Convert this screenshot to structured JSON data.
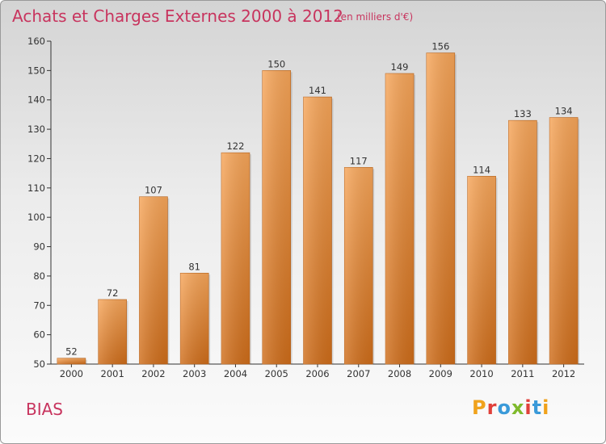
{
  "header": {
    "title": "Achats et Charges Externes 2000 à 2012",
    "unit": "(en milliers d'€)"
  },
  "footer": {
    "commune": "BIAS",
    "logo_text": "Proxiti",
    "logo_colors": [
      "#f0a21c",
      "#e0403a",
      "#3a9ad9",
      "#7fba2c",
      "#e0403a",
      "#3a9ad9",
      "#f0a21c"
    ]
  },
  "colors": {
    "title": "#c8345e",
    "bar_light": "#f7a65a",
    "bar_dark": "#cf6d1a",
    "axis": "#333333"
  },
  "chart_data": {
    "type": "bar",
    "title": "Achats et Charges Externes 2000 à 2012",
    "subtitle": "(en milliers d'€)",
    "categories": [
      "2000",
      "2001",
      "2002",
      "2003",
      "2004",
      "2005",
      "2006",
      "2007",
      "2008",
      "2009",
      "2010",
      "2011",
      "2012"
    ],
    "values": [
      52,
      72,
      107,
      81,
      122,
      150,
      141,
      117,
      149,
      156,
      114,
      133,
      134
    ],
    "ylim": [
      50,
      160
    ],
    "yticks": [
      50,
      60,
      70,
      80,
      90,
      100,
      110,
      120,
      130,
      140,
      150,
      160
    ],
    "data_labels": true,
    "grid": false
  }
}
